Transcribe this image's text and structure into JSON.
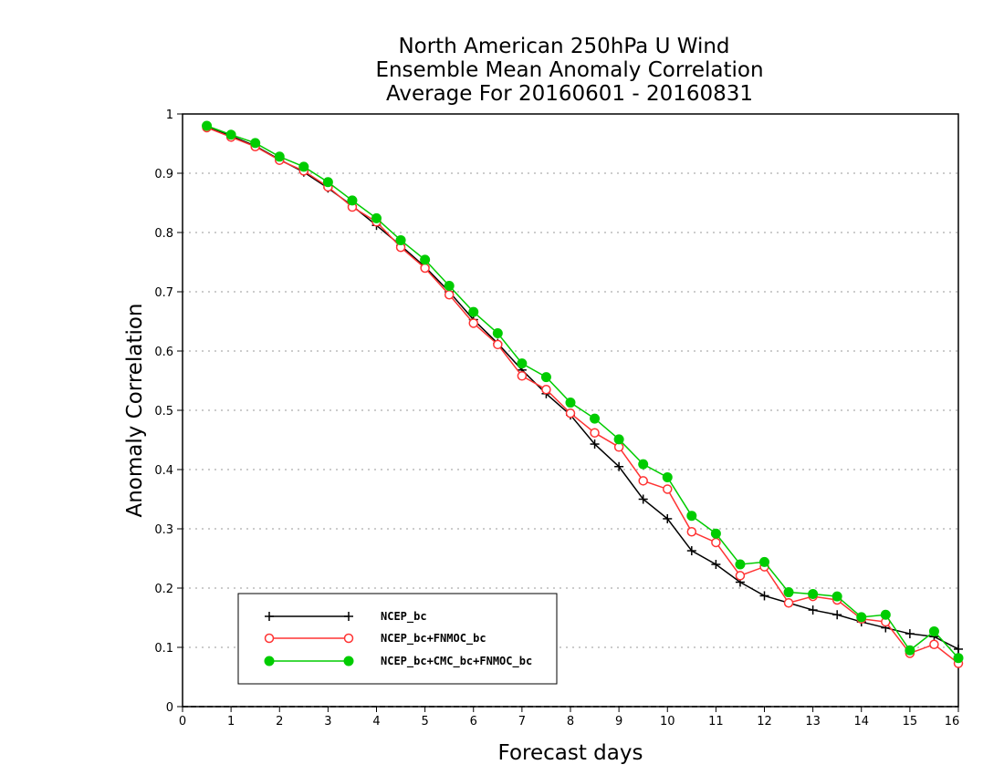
{
  "chart_data": {
    "type": "line",
    "title_lines": [
      "North American 250hPa U Wind",
      "Ensemble Mean Anomaly Correlation",
      "Average For 20160601 - 20160831"
    ],
    "xlabel": "Forecast days",
    "ylabel": "Anomaly Correlation",
    "xlim": [
      0,
      16
    ],
    "ylim": [
      0,
      1
    ],
    "xticks": [
      0,
      1,
      2,
      3,
      4,
      5,
      6,
      7,
      8,
      9,
      10,
      11,
      12,
      13,
      14,
      15,
      16
    ],
    "yticks": [
      0,
      0.1,
      0.2,
      0.3,
      0.4,
      0.5,
      0.6,
      0.7,
      0.8,
      0.9,
      1
    ],
    "ytick_labels": [
      "0",
      "0.1",
      "0.2",
      "0.3",
      "0.4",
      "0.5",
      "0.6",
      "0.7",
      "0.8",
      "0.9",
      "1"
    ],
    "grid": true,
    "legend_position": "bottom-left",
    "x": [
      0.5,
      1,
      1.5,
      2,
      2.5,
      3,
      3.5,
      4,
      4.5,
      5,
      5.5,
      6,
      6.5,
      7,
      7.5,
      8,
      8.5,
      9,
      9.5,
      10,
      10.5,
      11,
      11.5,
      12,
      12.5,
      13,
      13.5,
      14,
      14.5,
      15,
      15.5,
      16
    ],
    "series": [
      {
        "name": "NCEP_bc",
        "color": "#000000",
        "marker": "plus",
        "values": [
          0.978,
          0.963,
          0.946,
          0.923,
          0.902,
          0.875,
          0.845,
          0.812,
          0.778,
          0.742,
          0.7,
          0.653,
          0.613,
          0.568,
          0.528,
          0.492,
          0.443,
          0.405,
          0.35,
          0.317,
          0.263,
          0.24,
          0.21,
          0.187,
          0.175,
          0.163,
          0.155,
          0.143,
          0.133,
          0.123,
          0.118,
          0.097
        ]
      },
      {
        "name": "NCEP_bc+FNMOC_bc",
        "color": "#ff3333",
        "marker": "open-circle",
        "values": [
          0.977,
          0.961,
          0.945,
          0.922,
          0.904,
          0.877,
          0.843,
          0.818,
          0.775,
          0.74,
          0.695,
          0.647,
          0.611,
          0.558,
          0.535,
          0.495,
          0.462,
          0.438,
          0.381,
          0.367,
          0.295,
          0.277,
          0.221,
          0.236,
          0.175,
          0.186,
          0.18,
          0.148,
          0.143,
          0.09,
          0.105,
          0.073
        ]
      },
      {
        "name": "NCEP_bc+CMC_bc+FNMOC_bc",
        "color": "#00cc00",
        "marker": "filled-circle",
        "values": [
          0.98,
          0.965,
          0.951,
          0.928,
          0.911,
          0.885,
          0.854,
          0.824,
          0.787,
          0.754,
          0.71,
          0.666,
          0.63,
          0.579,
          0.556,
          0.513,
          0.486,
          0.451,
          0.409,
          0.387,
          0.322,
          0.292,
          0.24,
          0.244,
          0.193,
          0.19,
          0.186,
          0.151,
          0.155,
          0.095,
          0.127,
          0.082
        ]
      }
    ]
  }
}
